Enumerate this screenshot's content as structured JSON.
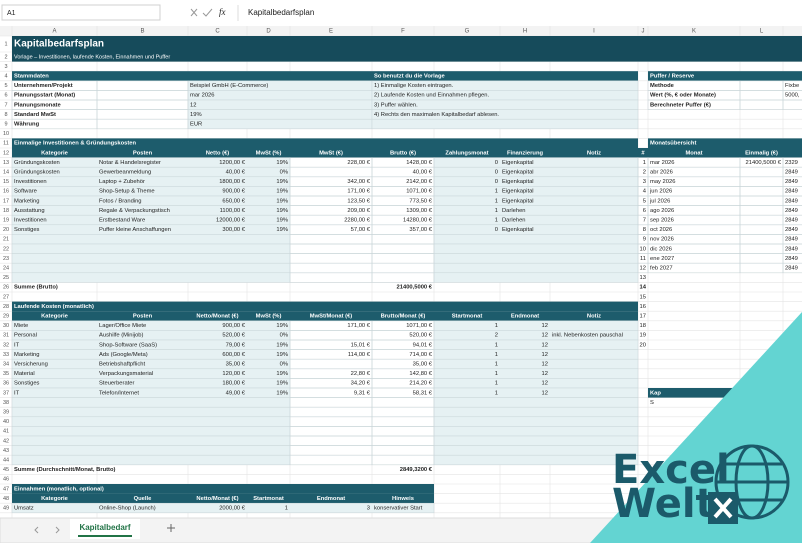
{
  "formula_bar": {
    "name_box": "A1",
    "function_icon": "fx",
    "formula": "Kapitalbedarfsplan"
  },
  "column_headers": [
    "A",
    "B",
    "C",
    "D",
    "E",
    "F",
    "G",
    "H",
    "I",
    "J",
    "K",
    "L"
  ],
  "row_numbers": [
    1,
    2,
    3,
    4,
    5,
    6,
    7,
    8,
    9,
    10,
    11,
    12,
    13,
    14,
    15,
    16,
    17,
    18,
    19,
    20,
    21,
    22,
    23,
    24,
    25,
    26,
    27,
    28,
    29,
    30,
    31,
    32,
    33,
    34,
    35,
    36,
    37,
    38,
    39,
    40,
    41,
    42,
    43,
    44,
    45,
    46,
    47,
    48,
    49
  ],
  "rows": [
    {
      "A": "Kapitalbedarfsplan"
    },
    {
      "A": "Vorlage – Investitionen, laufende Kosten, Einnahmen und Puffer"
    },
    {},
    {
      "A": "Stammdaten",
      "F": "So benutzt du die Vorlage",
      "K": "Puffer / Reserve"
    },
    {
      "A": "Unternehmen/Projekt",
      "C": "Beispiel GmbH (E-Commerce)",
      "F": "1) Einmalige Kosten eintragen.",
      "K": "Methode",
      "M": "Fixbe"
    },
    {
      "A": "Planungsstart (Monat)",
      "C": "mar 2026",
      "F": "2) Laufende Kosten und Einnahmen pflegen.",
      "K": "Wert (%, € oder Monate)",
      "M": "5000,"
    },
    {
      "A": "Planungsmonate",
      "C": "12",
      "F": "3) Puffer wählen.",
      "K": "Berechneter Puffer (€)"
    },
    {
      "A": "Standard MwSt",
      "C": "19%",
      "F": "4) Rechts den maximalen Kapitalbedarf ablesen."
    },
    {
      "A": "Währung",
      "C": "EUR"
    },
    {},
    {
      "A": "Einmalige Investitionen & Gründungskosten",
      "K": "Monatsübersicht"
    },
    {
      "A": "Kategorie",
      "B": "Posten",
      "C": "Netto (€)",
      "D": "MwSt (%)",
      "E": "MwSt (€)",
      "F": "Brutto (€)",
      "G": "Zahlungsmonat",
      "H": "Finanzierung",
      "I": "Notiz",
      "J": "#",
      "K": "Monat",
      "L": "Einmalig (€)",
      "M": "Lau"
    },
    {
      "A": "Gründungskosten",
      "B": "Notar & Handelsregister",
      "C": "1200,00 €",
      "D": "19%",
      "E": "228,00 €",
      "F": "1428,00 €",
      "G": "0",
      "H": "Eigenkapital",
      "J": "1",
      "K": "mar 2026",
      "L": "21400,5000 €",
      "M": "2329"
    },
    {
      "A": "Gründungskosten",
      "B": "Gewerbeanmeldung",
      "C": "40,00 €",
      "D": "0%",
      "F": "40,00 €",
      "G": "0",
      "H": "Eigenkapital",
      "J": "2",
      "K": "abr 2026",
      "M": "2849"
    },
    {
      "A": "Investitionen",
      "B": "Laptop + Zubehör",
      "C": "1800,00 €",
      "D": "19%",
      "E": "342,00 €",
      "F": "2142,00 €",
      "G": "0",
      "H": "Eigenkapital",
      "J": "3",
      "K": "may 2026",
      "M": "2849"
    },
    {
      "A": "Software",
      "B": "Shop-Setup & Theme",
      "C": "900,00 €",
      "D": "19%",
      "E": "171,00 €",
      "F": "1071,00 €",
      "G": "1",
      "H": "Eigenkapital",
      "J": "4",
      "K": "jun 2026",
      "M": "2849"
    },
    {
      "A": "Marketing",
      "B": "Fotos / Branding",
      "C": "650,00 €",
      "D": "19%",
      "E": "123,50 €",
      "F": "773,50 €",
      "G": "1",
      "H": "Eigenkapital",
      "J": "5",
      "K": "jul 2026",
      "M": "2849"
    },
    {
      "A": "Ausstattung",
      "B": "Regale & Verpackungstisch",
      "C": "1100,00 €",
      "D": "19%",
      "E": "209,00 €",
      "F": "1309,00 €",
      "G": "1",
      "H": "Darlehen",
      "J": "6",
      "K": "ago 2026",
      "M": "2849"
    },
    {
      "A": "Investitionen",
      "B": "Erstbestand Ware",
      "C": "12000,00 €",
      "D": "19%",
      "E": "2280,00 €",
      "F": "14280,00 €",
      "G": "1",
      "H": "Darlehen",
      "J": "7",
      "K": "sep 2026",
      "M": "2849"
    },
    {
      "A": "Sonstiges",
      "B": "Puffer kleine Anschaffungen",
      "C": "300,00 €",
      "D": "19%",
      "E": "57,00 €",
      "F": "357,00 €",
      "G": "0",
      "H": "Eigenkapital",
      "J": "8",
      "K": "oct 2026",
      "M": "2849"
    },
    {
      "J": "9",
      "K": "nov 2026",
      "M": "2849"
    },
    {
      "J": "10",
      "K": "dic 2026",
      "M": "2849"
    },
    {
      "J": "11",
      "K": "ene 2027",
      "M": "2849"
    },
    {
      "J": "12",
      "K": "feb 2027",
      "M": "2849"
    },
    {
      "J": "13"
    },
    {
      "A": "Summe (Brutto)",
      "F": "21400,5000 €",
      "J": "14"
    },
    {
      "J": "15"
    },
    {
      "A": "Laufende Kosten (monatlich)",
      "J": "16"
    },
    {
      "A": "Kategorie",
      "B": "Posten",
      "C": "Netto/Monat (€)",
      "D": "MwSt (%)",
      "E": "MwSt/Monat (€)",
      "F": "Brutto/Monat (€)",
      "G": "Startmonat",
      "H": "Endmonat",
      "I": "Notiz",
      "J": "17"
    },
    {
      "A": "Miete",
      "B": "Lager/Office Miete",
      "C": "900,00 €",
      "D": "19%",
      "E": "171,00 €",
      "F": "1071,00 €",
      "G": "1",
      "H": "12",
      "J": "18"
    },
    {
      "A": "Personal",
      "B": "Aushilfe (Minijob)",
      "C": "520,00 €",
      "D": "0%",
      "F": "520,00 €",
      "G": "2",
      "H": "12",
      "I": "inkl. Nebenkosten pauschal",
      "J": "19"
    },
    {
      "A": "IT",
      "B": "Shop-Software (SaaS)",
      "C": "79,00 €",
      "D": "19%",
      "E": "15,01 €",
      "F": "94,01 €",
      "G": "1",
      "H": "12",
      "J": "20"
    },
    {
      "A": "Marketing",
      "B": "Ads (Google/Meta)",
      "C": "600,00 €",
      "D": "19%",
      "E": "114,00 €",
      "F": "714,00 €",
      "G": "1",
      "H": "12"
    },
    {
      "A": "Versicherung",
      "B": "Betriebshaftpflicht",
      "C": "35,00 €",
      "D": "0%",
      "F": "35,00 €",
      "G": "1",
      "H": "12"
    },
    {
      "A": "Material",
      "B": "Verpackungsmaterial",
      "C": "120,00 €",
      "D": "19%",
      "E": "22,80 €",
      "F": "142,80 €",
      "G": "1",
      "H": "12"
    },
    {
      "A": "Sonstiges",
      "B": "Steuerberater",
      "C": "180,00 €",
      "D": "19%",
      "E": "34,20 €",
      "F": "214,20 €",
      "G": "1",
      "H": "12"
    },
    {
      "A": "IT",
      "B": "Telefon/Internet",
      "C": "49,00 €",
      "D": "19%",
      "E": "9,31 €",
      "F": "58,31 €",
      "G": "1",
      "H": "12",
      "K": "Kap"
    },
    {
      "K": "S"
    },
    {},
    {},
    {},
    {},
    {},
    {},
    {
      "A": "Summe (Durchschnitt/Monat, Brutto)",
      "F": "2849,3200 €"
    },
    {},
    {
      "A": "Einnahmen (monatlich, optional)"
    },
    {
      "A": "Kategorie",
      "B": "Quelle",
      "C": "Netto/Monat (€)",
      "D": "Startmonat",
      "E": "Endmonat",
      "F": "Hinweis"
    },
    {
      "A": "Umsatz",
      "B": "Online-Shop (Launch)",
      "C": "2000,00 €",
      "D": "1",
      "E": "3",
      "F": "konservativer Start"
    }
  ],
  "sheet_tabs": [
    "Kapitalbedarf"
  ],
  "logo": {
    "line1": "Excel",
    "line2": "Welt"
  }
}
